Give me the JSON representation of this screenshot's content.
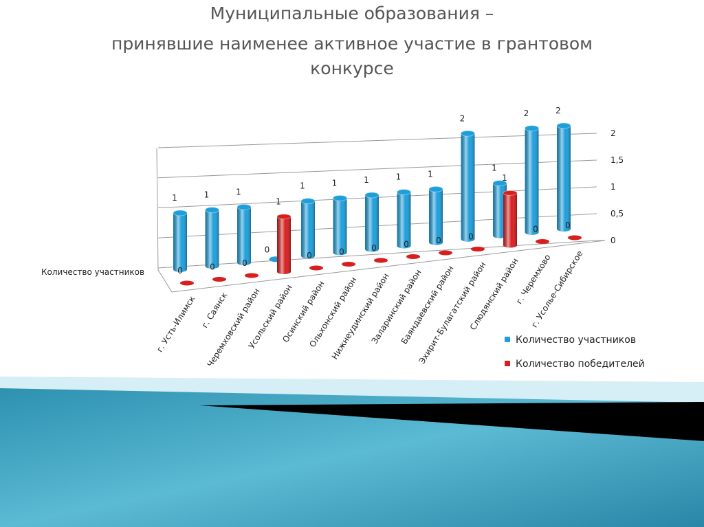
{
  "chart_data": {
    "type": "bar3d",
    "title": [
      "Муниципальные образования –",
      "принявшие наименее активное участие в грантовом",
      "конкурсе"
    ],
    "categories": [
      "г. Усть-Илимск",
      "г. Саянск",
      "Черемховский район",
      "Усольский район",
      "Осинский район",
      "Ольхонский район",
      "Нижнеудинский район",
      "Заларинский район",
      "Баяндаевский район",
      "Эхирит-Булагатский район",
      "Слюдянский район",
      "г. Черемхово",
      "г. Усолье-Сибирское"
    ],
    "series": [
      {
        "name": "Количество участников",
        "color": "#1e9fdc",
        "values": [
          1,
          1,
          1,
          0,
          1,
          1,
          1,
          1,
          1,
          2,
          1,
          2,
          2
        ]
      },
      {
        "name": "Количество победителей",
        "color": "#d81e1e",
        "values": [
          0,
          0,
          0,
          1,
          0,
          0,
          0,
          0,
          0,
          0,
          1,
          0,
          0
        ]
      }
    ],
    "ylim": [
      0,
      2
    ],
    "yticks": [
      0,
      {
        "value": 0.5,
        "label": "0,5"
      },
      1,
      {
        "value": 1.5,
        "label": "1,5"
      },
      2
    ],
    "grid": true
  }
}
